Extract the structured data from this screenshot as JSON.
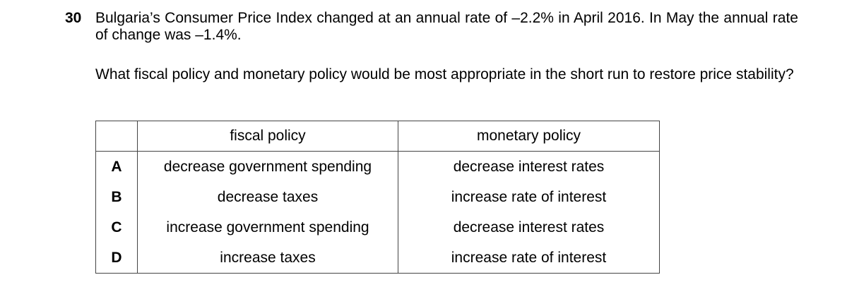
{
  "question": {
    "number": "30",
    "text": [
      "Bulgaria’s Consumer Price Index changed at an annual rate of –2.2% in April 2016. In May the annual rate of change was –1.4%.",
      "What fiscal policy and monetary policy would be most appropriate in the short run to restore price stability?"
    ]
  },
  "table": {
    "headers": [
      "fiscal policy",
      "monetary policy"
    ],
    "rows": [
      [
        "A",
        "decrease government spending",
        "decrease interest rates"
      ],
      [
        "B",
        "decrease taxes",
        "increase rate of interest"
      ],
      [
        "C",
        "increase government spending",
        "decrease interest rates"
      ],
      [
        "D",
        "increase taxes",
        "increase rate of interest"
      ]
    ]
  }
}
